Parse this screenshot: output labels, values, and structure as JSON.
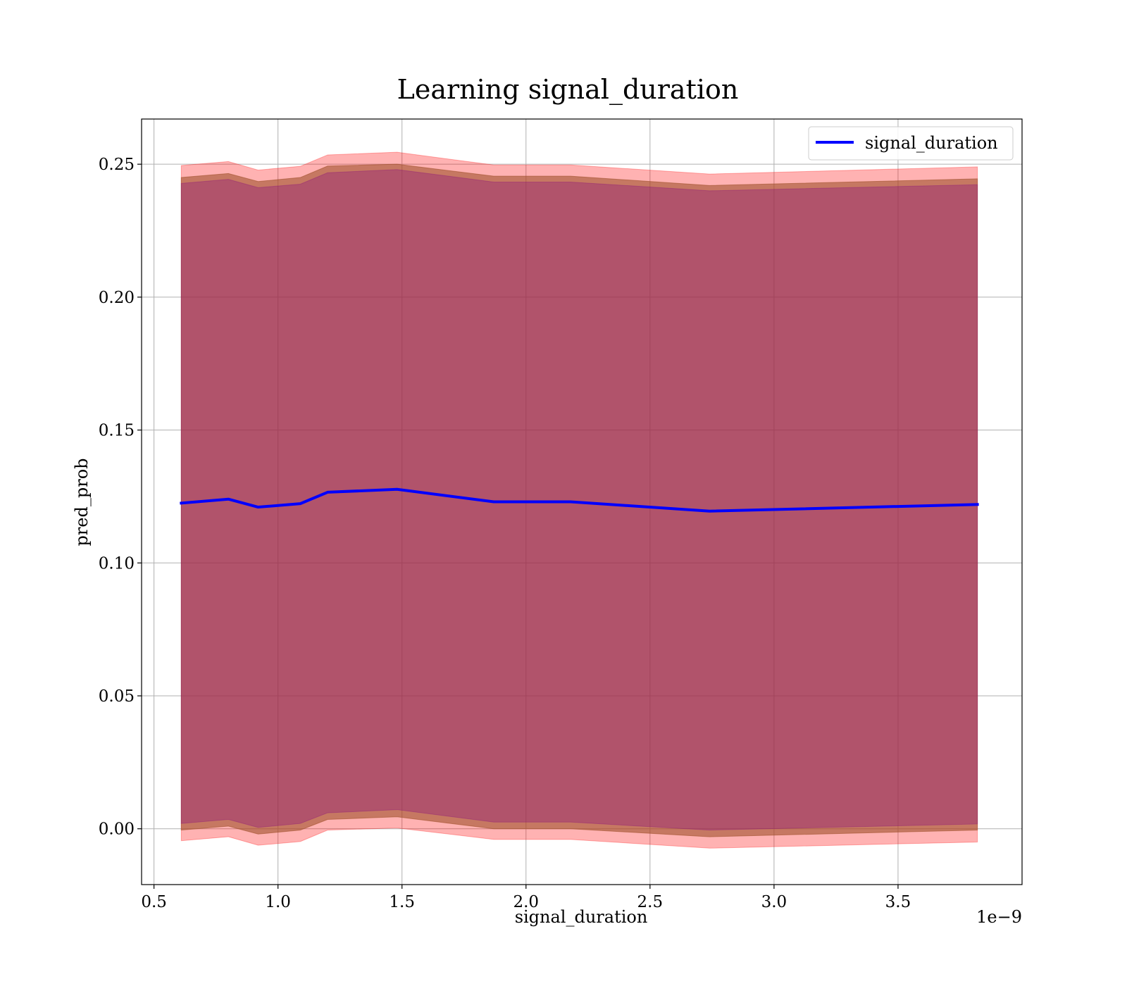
{
  "chart_data": {
    "type": "area",
    "title": "Learning signal_duration",
    "xlabel": "signal_duration",
    "ylabel": "pred_prob",
    "x_offset_label": "1e−9",
    "xlim": [
      0.45,
      4.0
    ],
    "ylim": [
      -0.021,
      0.267
    ],
    "x_ticks": [
      0.5,
      1.0,
      1.5,
      2.0,
      2.5,
      3.0,
      3.5
    ],
    "x_tick_labels": [
      "0.5",
      "1.0",
      "1.5",
      "2.0",
      "2.5",
      "3.0",
      "3.5"
    ],
    "y_ticks": [
      0.0,
      0.05,
      0.1,
      0.15,
      0.2,
      0.25
    ],
    "y_tick_labels": [
      "0.00",
      "0.05",
      "0.10",
      "0.15",
      "0.20",
      "0.25"
    ],
    "grid": true,
    "legend_position": "top-right",
    "x": [
      0.61,
      0.8,
      0.92,
      1.09,
      1.2,
      1.48,
      1.87,
      2.18,
      2.74,
      3.82
    ],
    "series": [
      {
        "name": "signal_duration",
        "color": "#0000ff",
        "mean": [
          0.1225,
          0.124,
          0.121,
          0.1223,
          0.1266,
          0.1277,
          0.123,
          0.123,
          0.1195,
          0.122
        ]
      }
    ],
    "bands": [
      {
        "color": "#ff0000",
        "opacity": 0.3,
        "lower": [
          -0.0045,
          -0.003,
          -0.0062,
          -0.0048,
          -0.0005,
          0.0003,
          -0.004,
          -0.004,
          -0.0073,
          -0.005
        ],
        "upper": [
          0.2495,
          0.251,
          0.2478,
          0.2492,
          0.2535,
          0.2545,
          0.2497,
          0.2497,
          0.2463,
          0.249
        ]
      },
      {
        "color": "#a0522d",
        "opacity": 0.6,
        "lower": [
          -0.0005,
          0.001,
          -0.002,
          -0.0005,
          0.0035,
          0.0045,
          0.0,
          0.0,
          -0.003,
          -0.0005
        ],
        "upper": [
          0.245,
          0.2465,
          0.2435,
          0.245,
          0.2493,
          0.25,
          0.2455,
          0.2455,
          0.242,
          0.2445
        ]
      },
      {
        "color": "#800080",
        "opacity": 0.3,
        "lower": [
          0.002,
          0.0035,
          0.0005,
          0.002,
          0.006,
          0.0072,
          0.0025,
          0.0025,
          -0.0005,
          0.0018
        ],
        "upper": [
          0.2428,
          0.2443,
          0.2412,
          0.2425,
          0.2468,
          0.248,
          0.2433,
          0.2433,
          0.24,
          0.2423
        ]
      }
    ]
  }
}
